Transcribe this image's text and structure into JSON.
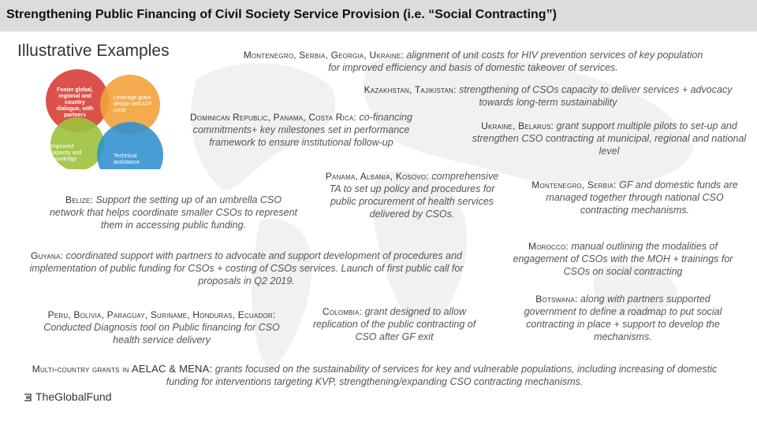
{
  "title": "Strengthening Public Financing of Civil Society Service Provision (i.e. “Social Contracting”)",
  "subtitle": "Illustrative Examples",
  "venn": {
    "a": "Foster global, regional and country dialogue, with partners",
    "b": "Leverage grant design and A2F cycle",
    "c": "Improved capacity and knowledge",
    "d": "Technical assistance"
  },
  "examples": {
    "mne_srb_geo_ukr": {
      "countries": "Montenegro, Serbia, Georgia, Ukraine:",
      "text": "alignment of unit costs for HIV prevention services of key population for improved efficiency and basis of domestic takeover of services."
    },
    "kaz_tjk": {
      "countries": "Kazakhstan, Tajikistan:",
      "text": "strengthening of CSOs capacity to deliver services + advocacy towards long-term sustainability"
    },
    "dom_pan_cri": {
      "countries": "Dominican Republic, Panama, Costa Rica:",
      "text": "co-financing commitments+ key milestones set in performance framework to ensure institutional follow-up"
    },
    "ukr_blr": {
      "countries": "Ukraine, Belarus:",
      "text": "grant support multiple pilots to set-up and strengthen CSO contracting at municipal, regional and national level"
    },
    "pan_alb_kos": {
      "countries": "Panama, Albania, Kosovo:",
      "text": "comprehensive TA to set up policy and procedures for public procurement of health services delivered by CSOs."
    },
    "mne_srb": {
      "countries": "Montenegro, Serbia:",
      "text": "GF and domestic funds are managed together through national CSO contracting mechanisms."
    },
    "belize": {
      "countries": "Belize:",
      "text": "Support the setting up of an umbrella CSO network that helps coordinate smaller CSOs to represent them in accessing public funding."
    },
    "guyana": {
      "countries": "Guyana:",
      "text": "coordinated support with partners to advocate and support development of procedures and implementation of public funding for CSOs + costing of CSOs services. Launch of first public call for proposals in Q2 2019."
    },
    "morocco": {
      "countries": "Morocco:",
      "text": "manual outlining the modalities of engagement of CSOs with the MOH + trainings for CSOs on social contracting"
    },
    "peru": {
      "countries": "Peru, Bolivia, Paraguay, Suriname, Honduras, Ecuador:",
      "text": "Conducted Diagnosis tool on Public financing for CSO health service delivery"
    },
    "colombia": {
      "countries": "Colombia:",
      "text": "grant designed to allow replication of the public contracting of CSO after GF exit"
    },
    "botswana": {
      "countries": "Botswana:",
      "text": "along with partners supported government to define a roadmap to put social contracting in place + support to develop the mechanisms."
    },
    "multi": {
      "countries": "Multi-country grants in",
      "regions": "AELAC & MENA:",
      "text": "grants focused on the sustainability of services for key and vulnerable populations, including increasing of domestic funding for interventions targeting KVP, strengthening/expanding CSO contracting mechanisms."
    }
  },
  "logo": {
    "text": "TheGlobalFund"
  },
  "colors": {
    "red": "#d9433b",
    "orange": "#f2a23a",
    "green": "#9cc23c",
    "blue": "#2f8fcf"
  }
}
